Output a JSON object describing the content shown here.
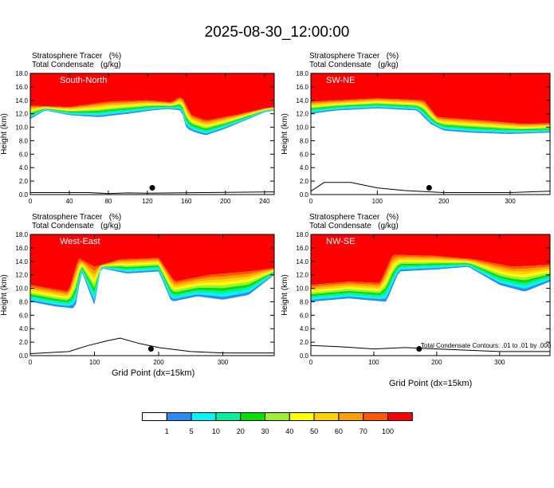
{
  "page_title": "2025-08-30_12:00:00",
  "footnote": "Total Condensate Contours: .01 to .01 by .000",
  "colorbar": {
    "colors": [
      "#ffffff",
      "#2a8cf2",
      "#00f5ff",
      "#00f0a0",
      "#00e000",
      "#a0f030",
      "#ffff00",
      "#ffd200",
      "#ffa000",
      "#ff5a00",
      "#ff0000"
    ],
    "labels": [
      "1",
      "5",
      "10",
      "20",
      "30",
      "40",
      "50",
      "60",
      "70",
      "100"
    ]
  },
  "chart_data": [
    {
      "type": "contour",
      "title": "South-North",
      "line1": "Stratosphere Tracer   (%)",
      "line2": "Total Condensate   (g/kg)",
      "ylabel": "Height (km)",
      "xlabel": "",
      "xlim": [
        0,
        250
      ],
      "ylim": [
        0,
        18
      ],
      "xticks": [
        0,
        40,
        80,
        120,
        160,
        200,
        240
      ],
      "yticks": [
        0,
        2,
        4,
        6,
        8,
        10,
        12,
        14,
        16,
        18
      ],
      "ytick_labels": [
        "0.0",
        "2.0",
        "4.0",
        "6.0",
        "8.0",
        "10.0",
        "12.0",
        "14.0",
        "16.0",
        "18.0"
      ],
      "tracer_base_km": [
        [
          0,
          11.2
        ],
        [
          15,
          12.5
        ],
        [
          40,
          11.8
        ],
        [
          70,
          11.5
        ],
        [
          100,
          12.0
        ],
        [
          125,
          12.5
        ],
        [
          140,
          12.7
        ],
        [
          155,
          12.5
        ],
        [
          160,
          9.8
        ],
        [
          170,
          9.2
        ],
        [
          180,
          8.8
        ],
        [
          200,
          9.8
        ],
        [
          220,
          11.0
        ],
        [
          240,
          12.2
        ],
        [
          250,
          12.5
        ]
      ],
      "tracer_top_km": [
        [
          0,
          13.2
        ],
        [
          40,
          13.0
        ],
        [
          80,
          13.8
        ],
        [
          120,
          14.0
        ],
        [
          145,
          13.7
        ],
        [
          155,
          14.6
        ],
        [
          165,
          11.8
        ],
        [
          180,
          11.0
        ],
        [
          210,
          11.8
        ],
        [
          240,
          12.8
        ],
        [
          250,
          13.0
        ]
      ],
      "terrain_km": [
        [
          0,
          0.3
        ],
        [
          60,
          0.3
        ],
        [
          80,
          0.15
        ],
        [
          100,
          0.25
        ],
        [
          120,
          0.2
        ],
        [
          180,
          0.3
        ],
        [
          250,
          0.4
        ]
      ],
      "point_marker": {
        "x": 125,
        "y": 1.0
      }
    },
    {
      "type": "contour",
      "title": "SW-NE",
      "line1": "Stratosphere Tracer   (%)",
      "line2": "Total Condensate   (g/kg)",
      "ylabel": "Height (km)",
      "xlabel": "",
      "xlim": [
        0,
        360
      ],
      "ylim": [
        0,
        18
      ],
      "xticks": [
        0,
        100,
        200,
        300
      ],
      "yticks": [
        0,
        2,
        4,
        6,
        8,
        10,
        12,
        14,
        16,
        18
      ],
      "ytick_labels": [
        "0.0",
        "2.0",
        "4.0",
        "6.0",
        "8.0",
        "10.0",
        "12.0",
        "14.0",
        "16.0",
        "18.0"
      ],
      "tracer_base_km": [
        [
          0,
          12.0
        ],
        [
          40,
          12.5
        ],
        [
          100,
          12.8
        ],
        [
          160,
          12.5
        ],
        [
          180,
          10.5
        ],
        [
          200,
          9.5
        ],
        [
          240,
          9.2
        ],
        [
          300,
          9.0
        ],
        [
          360,
          9.2
        ]
      ],
      "tracer_top_km": [
        [
          0,
          13.8
        ],
        [
          100,
          14.3
        ],
        [
          170,
          14.0
        ],
        [
          190,
          11.5
        ],
        [
          260,
          11.0
        ],
        [
          320,
          10.5
        ],
        [
          360,
          10.6
        ]
      ],
      "terrain_km": [
        [
          0,
          0.5
        ],
        [
          20,
          1.8
        ],
        [
          60,
          1.8
        ],
        [
          100,
          1.0
        ],
        [
          140,
          0.6
        ],
        [
          200,
          0.3
        ],
        [
          300,
          0.3
        ],
        [
          360,
          0.5
        ]
      ],
      "point_marker": {
        "x": 178,
        "y": 1.0
      }
    },
    {
      "type": "contour",
      "title": "West-East",
      "line1": "Stratosphere Tracer   (%)",
      "line2": "Total Condensate   (g/kg)",
      "ylabel": "Height (km)",
      "xlabel": "Grid Point (dx=15km)",
      "xlim": [
        0,
        380
      ],
      "ylim": [
        0,
        18
      ],
      "xticks": [
        0,
        100,
        200,
        300
      ],
      "yticks": [
        0,
        2,
        4,
        6,
        8,
        10,
        12,
        14,
        16,
        18
      ],
      "ytick_labels": [
        "0.0",
        "2.0",
        "4.0",
        "6.0",
        "8.0",
        "10.0",
        "12.0",
        "14.0",
        "16.0",
        "18.0"
      ],
      "tracer_base_km": [
        [
          0,
          8.0
        ],
        [
          40,
          7.3
        ],
        [
          70,
          7.0
        ],
        [
          80,
          12.5
        ],
        [
          100,
          7.5
        ],
        [
          110,
          13.0
        ],
        [
          150,
          12.2
        ],
        [
          200,
          12.5
        ],
        [
          220,
          8.0
        ],
        [
          260,
          8.8
        ],
        [
          300,
          8.3
        ],
        [
          340,
          9.0
        ],
        [
          380,
          12.0
        ]
      ],
      "tracer_top_km": [
        [
          0,
          10.5
        ],
        [
          60,
          9.5
        ],
        [
          75,
          14.5
        ],
        [
          100,
          13.2
        ],
        [
          140,
          14.3
        ],
        [
          200,
          14.5
        ],
        [
          225,
          11.0
        ],
        [
          280,
          12.0
        ],
        [
          340,
          12.5
        ],
        [
          380,
          13.0
        ]
      ],
      "terrain_km": [
        [
          0,
          0.3
        ],
        [
          60,
          0.6
        ],
        [
          90,
          1.5
        ],
        [
          120,
          2.2
        ],
        [
          140,
          2.6
        ],
        [
          170,
          1.8
        ],
        [
          200,
          1.2
        ],
        [
          250,
          0.6
        ],
        [
          300,
          0.4
        ],
        [
          380,
          0.4
        ]
      ],
      "point_marker": {
        "x": 188,
        "y": 1.0
      }
    },
    {
      "type": "contour",
      "title": "NW-SE",
      "line1": "Stratosphere Tracer   (%)",
      "line2": "Total Condensate   (g/kg)",
      "ylabel": "Height (km)",
      "xlabel": "Grid Point (dx=15km)",
      "xlim": [
        0,
        380
      ],
      "ylim": [
        0,
        18
      ],
      "xticks": [
        0,
        100,
        200,
        300
      ],
      "yticks": [
        0,
        2,
        4,
        6,
        8,
        10,
        12,
        14,
        16,
        18
      ],
      "ytick_labels": [
        "0.0",
        "2.0",
        "4.0",
        "6.0",
        "8.0",
        "10.0",
        "12.0",
        "14.0",
        "16.0",
        "18.0"
      ],
      "tracer_base_km": [
        [
          0,
          8.0
        ],
        [
          60,
          8.5
        ],
        [
          120,
          8.0
        ],
        [
          140,
          12.5
        ],
        [
          200,
          12.8
        ],
        [
          250,
          13.2
        ],
        [
          300,
          10.5
        ],
        [
          340,
          9.5
        ],
        [
          380,
          11.0
        ]
      ],
      "tracer_top_km": [
        [
          0,
          10.5
        ],
        [
          60,
          11.0
        ],
        [
          110,
          10.8
        ],
        [
          130,
          15.0
        ],
        [
          200,
          14.8
        ],
        [
          260,
          14.3
        ],
        [
          320,
          13.2
        ],
        [
          380,
          13.5
        ]
      ],
      "terrain_km": [
        [
          0,
          1.5
        ],
        [
          50,
          1.3
        ],
        [
          100,
          1.0
        ],
        [
          150,
          1.2
        ],
        [
          200,
          1.0
        ],
        [
          250,
          0.8
        ],
        [
          300,
          0.6
        ],
        [
          380,
          0.6
        ]
      ],
      "point_marker": {
        "x": 172,
        "y": 1.0
      }
    }
  ]
}
